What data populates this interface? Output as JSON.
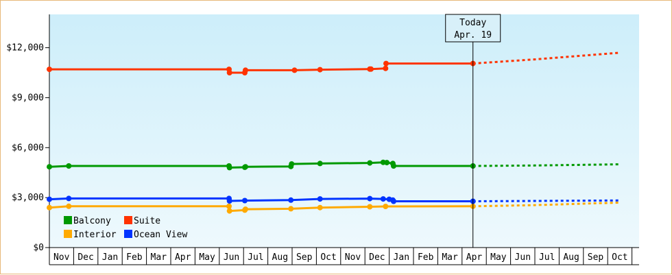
{
  "chart_data": {
    "type": "line",
    "title": "",
    "xlabel": "",
    "ylabel": "",
    "ylim": [
      0,
      14000
    ],
    "y_ticks": [
      {
        "value": 0,
        "label": "$0"
      },
      {
        "value": 3000,
        "label": "$3,000"
      },
      {
        "value": 6000,
        "label": "$6,000"
      },
      {
        "value": 9000,
        "label": "$9,000"
      },
      {
        "value": 12000,
        "label": "$12,000"
      }
    ],
    "x_months": [
      "Nov",
      "Dec",
      "Jan",
      "Feb",
      "Mar",
      "Apr",
      "May",
      "Jun",
      "Jul",
      "Aug",
      "Sep",
      "Oct",
      "Nov",
      "Dec",
      "Jan",
      "Feb",
      "Mar",
      "Apr",
      "May",
      "Jun",
      "Jul",
      "Aug",
      "Sep",
      "Oct"
    ],
    "today": {
      "line1": "Today",
      "line2": "Apr. 19",
      "x": 17.45
    },
    "legend_placement": "bottom-left",
    "series": [
      {
        "name": "Suite",
        "color": "#ff3300",
        "points": [
          [
            0,
            10700
          ],
          [
            7.4,
            10700
          ],
          [
            7.42,
            10500
          ],
          [
            8.05,
            10500
          ],
          [
            8.08,
            10650
          ],
          [
            10.1,
            10650
          ],
          [
            11.15,
            10680
          ],
          [
            13.2,
            10720
          ],
          [
            13.25,
            10720
          ],
          [
            13.85,
            10760
          ],
          [
            13.87,
            11050
          ],
          [
            17.45,
            11050
          ]
        ],
        "forecast": [
          [
            17.45,
            11050
          ],
          [
            20,
            11300
          ],
          [
            23.5,
            11700
          ]
        ]
      },
      {
        "name": "Balcony",
        "color": "#009900",
        "points": [
          [
            0,
            4850
          ],
          [
            0.8,
            4900
          ],
          [
            7.4,
            4900
          ],
          [
            7.42,
            4800
          ],
          [
            8.05,
            4820
          ],
          [
            8.08,
            4850
          ],
          [
            9.95,
            4870
          ],
          [
            9.98,
            5020
          ],
          [
            11.15,
            5050
          ],
          [
            13.2,
            5080
          ],
          [
            13.75,
            5120
          ],
          [
            13.9,
            5100
          ],
          [
            14.15,
            5050
          ],
          [
            14.18,
            4900
          ],
          [
            17.45,
            4900
          ]
        ],
        "forecast": [
          [
            17.45,
            4900
          ],
          [
            20,
            4930
          ],
          [
            23.5,
            5000
          ]
        ]
      },
      {
        "name": "Interior",
        "color": "#ffaa00",
        "points": [
          [
            0,
            2400
          ],
          [
            0.8,
            2480
          ],
          [
            7.4,
            2480
          ],
          [
            7.42,
            2200
          ],
          [
            8.05,
            2250
          ],
          [
            8.08,
            2300
          ],
          [
            9.95,
            2330
          ],
          [
            11.15,
            2400
          ],
          [
            13.2,
            2450
          ],
          [
            13.85,
            2470
          ],
          [
            17.45,
            2480
          ]
        ],
        "forecast": [
          [
            17.45,
            2480
          ],
          [
            20,
            2550
          ],
          [
            23.5,
            2700
          ]
        ]
      },
      {
        "name": "Ocean View",
        "color": "#0033ff",
        "points": [
          [
            0,
            2900
          ],
          [
            0.8,
            2950
          ],
          [
            7.4,
            2950
          ],
          [
            7.42,
            2800
          ],
          [
            8.05,
            2820
          ],
          [
            9.95,
            2850
          ],
          [
            11.15,
            2920
          ],
          [
            13.2,
            2940
          ],
          [
            13.75,
            2920
          ],
          [
            14.0,
            2900
          ],
          [
            14.15,
            2850
          ],
          [
            14.18,
            2780
          ],
          [
            17.45,
            2780
          ]
        ],
        "forecast": [
          [
            17.45,
            2780
          ],
          [
            20,
            2800
          ],
          [
            23.5,
            2830
          ]
        ]
      }
    ]
  }
}
